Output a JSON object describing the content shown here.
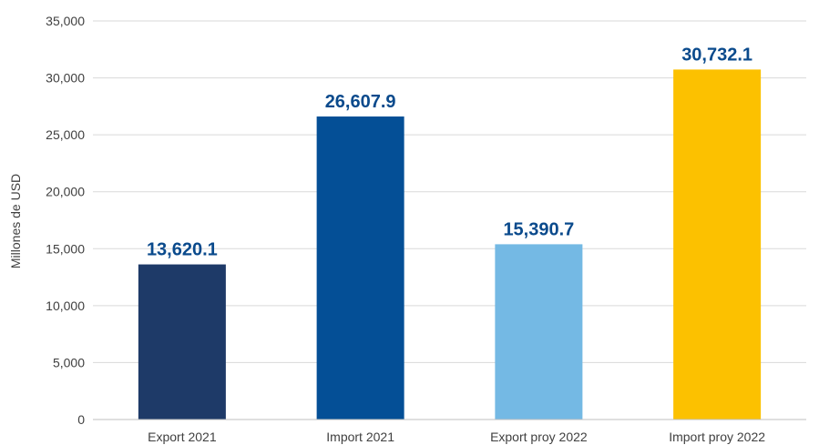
{
  "chart_data": {
    "type": "bar",
    "categories": [
      "Export 2021",
      "Import 2021",
      "Export proy 2022",
      "Import proy 2022"
    ],
    "values": [
      13620.1,
      26607.9,
      15390.7,
      30732.1
    ],
    "value_labels": [
      "13,620.1",
      "26,607.9",
      "15,390.7",
      "30,732.1"
    ],
    "bar_colors": [
      "#1e3a68",
      "#044f96",
      "#74b9e4",
      "#fcc100"
    ],
    "label_color": "#0a4a8c",
    "title": "",
    "xlabel": "",
    "ylabel": "Millones de USD",
    "ylim": [
      0,
      35000
    ],
    "yticks": [
      0,
      5000,
      10000,
      15000,
      20000,
      25000,
      30000,
      35000
    ],
    "ytick_labels": [
      "0",
      "5,000",
      "10,000",
      "15,000",
      "20,000",
      "25,000",
      "30,000",
      "35,000"
    ],
    "grid": true,
    "legend": "none"
  }
}
